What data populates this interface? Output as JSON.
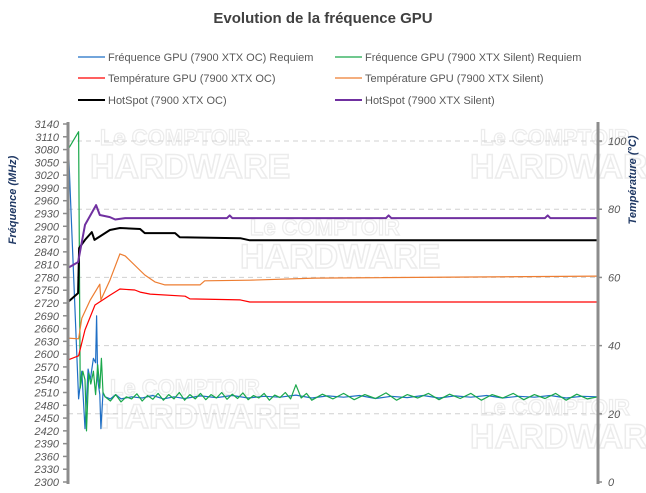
{
  "chart_data": {
    "type": "line",
    "title": "Evolution de la fréquence GPU",
    "ylabel_left": "Fréquence (MHz)",
    "ylabel_right": "Température (°C)",
    "ylim_left": [
      2300,
      3140
    ],
    "yticks_left_step": 30,
    "ylim_right": [
      0,
      105
    ],
    "yticks_right": [
      0,
      20,
      40,
      60,
      80,
      100
    ],
    "grid": "horizontal dashed at right-axis ticks",
    "legend": "top",
    "watermark": [
      "Le COMPTOIR du HARDWARE"
    ],
    "series": [
      {
        "name": "Fréquence GPU (7900 XTX OC) Requiem",
        "axis": "left",
        "color": "#1f6fc5",
        "width": 1.2,
        "points": [
          [
            0,
            3110
          ],
          [
            2,
            2495
          ],
          [
            2.6,
            2560
          ],
          [
            3.2,
            2425
          ],
          [
            3.8,
            2565
          ],
          [
            4.2,
            2540
          ],
          [
            4.8,
            2590
          ],
          [
            5.2,
            2580
          ],
          [
            5.4,
            2690
          ],
          [
            5.6,
            2540
          ],
          [
            6,
            2505
          ],
          [
            6.2,
            2425
          ],
          [
            6.6,
            2510
          ],
          [
            7,
            2500
          ],
          [
            8,
            2495
          ],
          [
            9,
            2505
          ],
          [
            10,
            2495
          ],
          [
            12,
            2500
          ],
          [
            14,
            2497
          ],
          [
            16,
            2503
          ],
          [
            18,
            2495
          ],
          [
            20,
            2500
          ],
          [
            22,
            2496
          ],
          [
            25,
            2502
          ],
          [
            28,
            2498
          ],
          [
            31,
            2503
          ],
          [
            34,
            2497
          ],
          [
            37,
            2501
          ],
          [
            40,
            2499
          ],
          [
            43,
            2504
          ],
          [
            46,
            2497
          ],
          [
            49,
            2502
          ],
          [
            52,
            2499
          ],
          [
            55,
            2503
          ],
          [
            58,
            2496
          ],
          [
            61,
            2501
          ],
          [
            64,
            2498
          ],
          [
            67,
            2503
          ],
          [
            70,
            2497
          ],
          [
            73,
            2502
          ],
          [
            76,
            2499
          ],
          [
            79,
            2503
          ],
          [
            82,
            2497
          ],
          [
            85,
            2501
          ],
          [
            88,
            2499
          ],
          [
            91,
            2503
          ],
          [
            94,
            2497
          ],
          [
            97,
            2501
          ],
          [
            100,
            2500
          ]
        ]
      },
      {
        "name": "Fréquence GPU (7900 XTX Silent) Requiem",
        "axis": "left",
        "color": "#1aa84b",
        "width": 1.2,
        "points": [
          [
            0,
            3080
          ],
          [
            2,
            3122
          ],
          [
            2.3,
            2520
          ],
          [
            2.8,
            2560
          ],
          [
            3.2,
            2540
          ],
          [
            3.5,
            2420
          ],
          [
            3.9,
            2555
          ],
          [
            4.3,
            2530
          ],
          [
            4.8,
            2560
          ],
          [
            5.2,
            2505
          ],
          [
            5.6,
            2575
          ],
          [
            6,
            2520
          ],
          [
            6.3,
            2590
          ],
          [
            6.6,
            2510
          ],
          [
            7,
            2500
          ],
          [
            8,
            2490
          ],
          [
            9,
            2505
          ],
          [
            10,
            2488
          ],
          [
            11,
            2500
          ],
          [
            12,
            2495
          ],
          [
            13,
            2507
          ],
          [
            14,
            2490
          ],
          [
            15,
            2503
          ],
          [
            16,
            2494
          ],
          [
            17,
            2508
          ],
          [
            18,
            2492
          ],
          [
            19,
            2505
          ],
          [
            20,
            2495
          ],
          [
            21,
            2510
          ],
          [
            22,
            2492
          ],
          [
            23,
            2505
          ],
          [
            24,
            2495
          ],
          [
            25,
            2508
          ],
          [
            26,
            2493
          ],
          [
            27,
            2505
          ],
          [
            28,
            2497
          ],
          [
            29,
            2510
          ],
          [
            30,
            2494
          ],
          [
            31,
            2506
          ],
          [
            32,
            2496
          ],
          [
            33,
            2509
          ],
          [
            34,
            2493
          ],
          [
            35,
            2503
          ],
          [
            36,
            2497
          ],
          [
            37,
            2508
          ],
          [
            38,
            2492
          ],
          [
            39,
            2504
          ],
          [
            40,
            2498
          ],
          [
            41,
            2510
          ],
          [
            42,
            2495
          ],
          [
            43,
            2528
          ],
          [
            44,
            2497
          ],
          [
            45,
            2508
          ],
          [
            46,
            2492
          ],
          [
            48,
            2506
          ],
          [
            50,
            2495
          ],
          [
            52,
            2508
          ],
          [
            54,
            2493
          ],
          [
            56,
            2505
          ],
          [
            58,
            2496
          ],
          [
            60,
            2509
          ],
          [
            62,
            2492
          ],
          [
            64,
            2505
          ],
          [
            66,
            2497
          ],
          [
            68,
            2508
          ],
          [
            70,
            2493
          ],
          [
            72,
            2506
          ],
          [
            74,
            2496
          ],
          [
            76,
            2508
          ],
          [
            78,
            2492
          ],
          [
            80,
            2505
          ],
          [
            82,
            2497
          ],
          [
            84,
            2508
          ],
          [
            86,
            2493
          ],
          [
            88,
            2505
          ],
          [
            90,
            2496
          ],
          [
            92,
            2508
          ],
          [
            94,
            2492
          ],
          [
            96,
            2506
          ],
          [
            98,
            2495
          ],
          [
            100,
            2500
          ]
        ]
      },
      {
        "name": "Température GPU (7900 XTX OC)",
        "axis": "right",
        "color": "#ff0000",
        "width": 1.2,
        "points": [
          [
            0,
            35.8
          ],
          [
            2,
            37
          ],
          [
            3.2,
            44.6
          ],
          [
            5.1,
            51.9
          ],
          [
            7.9,
            54.8
          ],
          [
            9.8,
            56.6
          ],
          [
            12.6,
            56.3
          ],
          [
            13.6,
            55.7
          ],
          [
            15.5,
            55.1
          ],
          [
            22.1,
            54.5
          ],
          [
            23,
            53.7
          ],
          [
            32.5,
            53.4
          ],
          [
            34.3,
            52.8
          ],
          [
            100,
            52.8
          ]
        ]
      },
      {
        "name": "Température GPU (7900 XTX Silent)",
        "axis": "right",
        "color": "#ed7d31",
        "width": 1.2,
        "points": [
          [
            0,
            42.2
          ],
          [
            2,
            42
          ],
          [
            2.6,
            48
          ],
          [
            4.2,
            53.4
          ],
          [
            6,
            58
          ],
          [
            6.2,
            53.4
          ],
          [
            7.9,
            59.2
          ],
          [
            9.8,
            66.9
          ],
          [
            10.8,
            66.3
          ],
          [
            14.5,
            60.7
          ],
          [
            16.4,
            58.7
          ],
          [
            18.3,
            57.8
          ],
          [
            24.9,
            57.8
          ],
          [
            25.8,
            59
          ],
          [
            34.3,
            59.2
          ],
          [
            46.6,
            59.8
          ],
          [
            100,
            60.4
          ]
        ]
      },
      {
        "name": "HotSpot (7900 XTX OC)",
        "axis": "right",
        "color": "#000000",
        "width": 2,
        "points": [
          [
            0,
            52.8
          ],
          [
            1.9,
            55.4
          ],
          [
            2.1,
            68.6
          ],
          [
            3.2,
            71
          ],
          [
            4.5,
            73.3
          ],
          [
            5,
            71
          ],
          [
            6,
            72
          ],
          [
            7.9,
            73.9
          ],
          [
            9.8,
            74.5
          ],
          [
            13.6,
            74.2
          ],
          [
            14.5,
            73
          ],
          [
            20.2,
            73
          ],
          [
            21.1,
            71.8
          ],
          [
            32.5,
            71.5
          ],
          [
            34.3,
            70.9
          ],
          [
            100,
            70.9
          ]
        ]
      },
      {
        "name": "HotSpot (7900 XTX Silent)",
        "axis": "right",
        "color": "#7030a0",
        "width": 2,
        "points": [
          [
            0,
            62.8
          ],
          [
            1.9,
            64.5
          ],
          [
            3.2,
            75.4
          ],
          [
            5.3,
            81.2
          ],
          [
            6,
            78.3
          ],
          [
            7.9,
            77.7
          ],
          [
            8.9,
            77
          ],
          [
            10.8,
            77.4
          ],
          [
            20,
            77.4
          ],
          [
            30,
            77.4
          ],
          [
            30.5,
            78.2
          ],
          [
            31,
            77.4
          ],
          [
            40,
            77.4
          ],
          [
            60,
            77.4
          ],
          [
            60.5,
            78.2
          ],
          [
            61,
            77.4
          ],
          [
            80,
            77.4
          ],
          [
            90,
            77.4
          ],
          [
            90.5,
            78.2
          ],
          [
            91,
            77.4
          ],
          [
            100,
            77.4
          ]
        ]
      }
    ]
  }
}
